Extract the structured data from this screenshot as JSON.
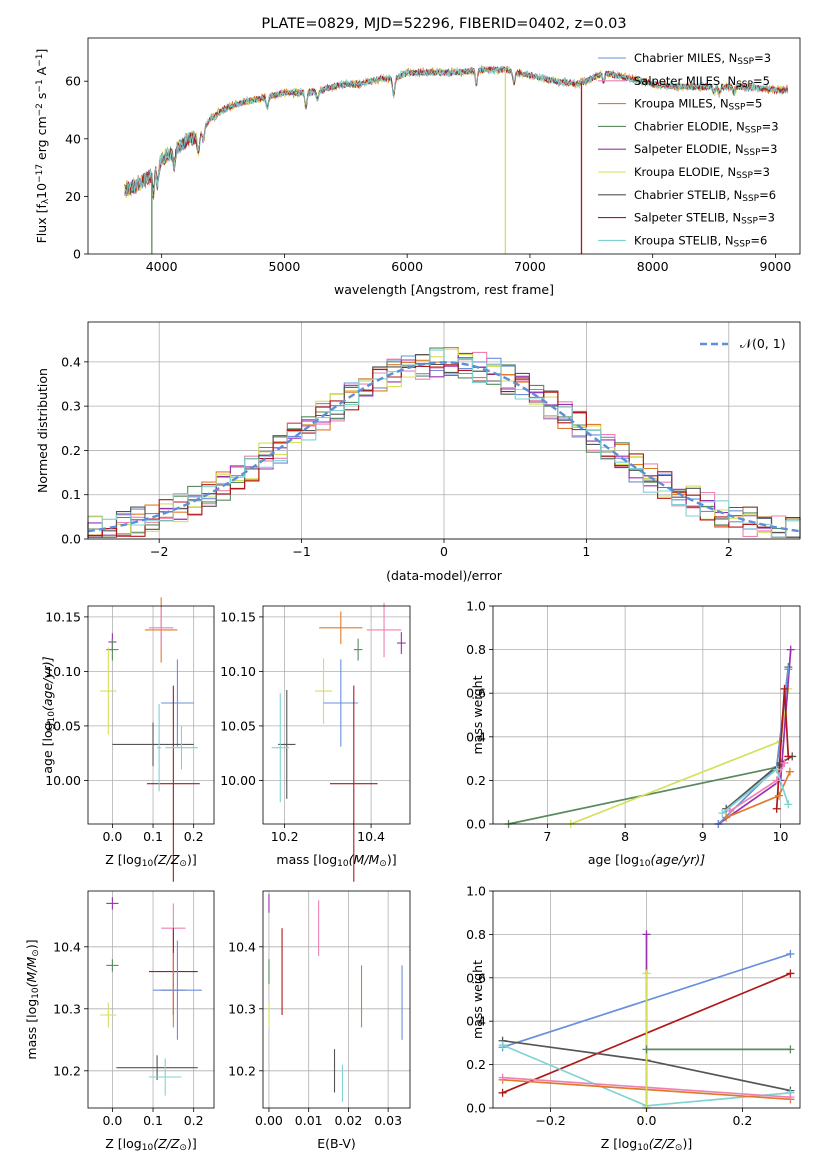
{
  "chart_data": [
    {
      "type": "line",
      "title": "PLATE=0829, MJD=52296, FIBERID=0402, z=0.03",
      "xlabel": "wavelength [Angstrom, rest frame]",
      "ylabel_parts": [
        "Flux [f",
        "λ",
        "10",
        "−17",
        " erg cm",
        "−2",
        " s",
        "−1",
        " A",
        "−1",
        "]"
      ],
      "xlim": [
        3400,
        9200
      ],
      "ylim": [
        0,
        75
      ],
      "xticks": [
        4000,
        5000,
        6000,
        7000,
        8000,
        9000
      ],
      "yticks": [
        0,
        20,
        40,
        60
      ],
      "grid": false,
      "legend_position": "right",
      "series": [
        {
          "name": "Chabrier MILES, N",
          "sub": "SSP",
          "suffix": "=3",
          "color": "#6a8fde"
        },
        {
          "name": "Salpeter MILES, N",
          "sub": "SSP",
          "suffix": "=5",
          "color": "#ee82b4"
        },
        {
          "name": "Kroupa MILES, N",
          "sub": "SSP",
          "suffix": "=5",
          "color": "#e07b2a"
        },
        {
          "name": "Chabrier ELODIE, N",
          "sub": "SSP",
          "suffix": "=3",
          "color": "#5a8a5e"
        },
        {
          "name": "Salpeter ELODIE, N",
          "sub": "SSP",
          "suffix": "=3",
          "color": "#9a30b0"
        },
        {
          "name": "Kroupa ELODIE, N",
          "sub": "SSP",
          "suffix": "=3",
          "color": "#d4e05a"
        },
        {
          "name": "Chabrier STELIB, N",
          "sub": "SSP",
          "suffix": "=6",
          "color": "#555555"
        },
        {
          "name": "Salpeter STELIB, N",
          "sub": "SSP",
          "suffix": "=3",
          "color": "#b01818"
        },
        {
          "name": "Kroupa STELIB, N",
          "sub": "SSP",
          "suffix": "=6",
          "color": "#7fd3d3"
        }
      ],
      "continuum": [
        [
          3700,
          22
        ],
        [
          3800,
          24
        ],
        [
          3900,
          27
        ],
        [
          4000,
          33
        ],
        [
          4100,
          36
        ],
        [
          4200,
          39
        ],
        [
          4300,
          41
        ],
        [
          4400,
          47
        ],
        [
          4500,
          50
        ],
        [
          4600,
          52
        ],
        [
          4700,
          53
        ],
        [
          4800,
          54
        ],
        [
          4900,
          55
        ],
        [
          5000,
          56
        ],
        [
          5100,
          56
        ],
        [
          5200,
          56
        ],
        [
          5300,
          57
        ],
        [
          5400,
          58
        ],
        [
          5500,
          59
        ],
        [
          5600,
          59
        ],
        [
          5700,
          60
        ],
        [
          5800,
          61
        ],
        [
          5900,
          61
        ],
        [
          6000,
          63
        ],
        [
          6200,
          63
        ],
        [
          6400,
          63
        ],
        [
          6600,
          64
        ],
        [
          6800,
          64
        ],
        [
          7000,
          62
        ],
        [
          7200,
          60
        ],
        [
          7400,
          59
        ],
        [
          7600,
          63
        ],
        [
          7800,
          61
        ],
        [
          8000,
          59
        ],
        [
          8200,
          58
        ],
        [
          8400,
          58
        ],
        [
          8600,
          58
        ],
        [
          8800,
          58
        ],
        [
          9000,
          57
        ],
        [
          9100,
          57
        ]
      ],
      "drops": [
        {
          "x": 3920,
          "color": "#5a8a5e"
        },
        {
          "x": 6800,
          "color": "#d4e05a"
        },
        {
          "x": 7420,
          "color": "#b01818"
        }
      ]
    },
    {
      "type": "histogram",
      "xlabel": "(data-model)/error",
      "ylabel": "Normed distribution",
      "xlim": [
        -2.5,
        2.5
      ],
      "ylim": [
        0,
        0.49
      ],
      "xticks": [
        -2,
        -1,
        0,
        1,
        2
      ],
      "yticks": [
        0.0,
        0.1,
        0.2,
        0.3,
        0.4
      ],
      "grid": true,
      "legend_position": "top-right",
      "legend": [
        "𝒩(0, 1)"
      ],
      "reference_curve": {
        "name": "𝒩(0, 1)",
        "mean": 0,
        "sigma": 1,
        "color": "#5b8fd9"
      }
    },
    {
      "type": "scatter",
      "xlabel_parts": [
        "Z [log",
        "10",
        "(Z/Z",
        "⊙",
        ")]"
      ],
      "ylabel_parts": [
        "age  [log",
        "10",
        "(age/yr)]"
      ],
      "xlim": [
        -0.06,
        0.25
      ],
      "ylim": [
        9.96,
        10.16
      ],
      "xticks": [
        0.0,
        0.1,
        0.2
      ],
      "yticks": [
        10.0,
        10.05,
        10.1,
        10.15
      ],
      "grid": true,
      "points": [
        {
          "x": 0.12,
          "y": 10.138,
          "xerr": 0.04,
          "yerr": 0.03,
          "color": "#e07b2a"
        },
        {
          "x": 0.12,
          "y": 10.14,
          "xerr": 0.03,
          "yerr": 0.02,
          "color": "#ee82b4"
        },
        {
          "x": 0.0,
          "y": 10.127,
          "xerr": 0.01,
          "yerr": 0.008,
          "color": "#9a30b0"
        },
        {
          "x": 0.0,
          "y": 10.12,
          "xerr": 0.015,
          "yerr": 0.01,
          "color": "#5a8a5e"
        },
        {
          "x": -0.01,
          "y": 10.082,
          "xerr": 0.02,
          "yerr": 0.04,
          "color": "#d4e05a"
        },
        {
          "x": 0.16,
          "y": 10.071,
          "xerr": 0.04,
          "yerr": 0.04,
          "color": "#6a8fde"
        },
        {
          "x": 0.1,
          "y": 10.033,
          "xerr": 0.1,
          "yerr": 0.02,
          "color": "#555555"
        },
        {
          "x": 0.15,
          "y": 9.997,
          "xerr": 0.065,
          "yerr": 0.09,
          "color": "#b01818"
        },
        {
          "x": 0.17,
          "y": 10.03,
          "xerr": 0.04,
          "yerr": 0.02,
          "color": "#7fd3d3"
        },
        {
          "x": 0.115,
          "y": 10.03,
          "xerr": 0.005,
          "yerr": 0.04,
          "color": "#7fd3d3"
        }
      ]
    },
    {
      "type": "scatter",
      "xlabel_parts": [
        "mass [log",
        "10",
        "(M/M",
        "⊙",
        ")]"
      ],
      "ylabel_parts": [],
      "xlim": [
        10.15,
        10.49
      ],
      "ylim": [
        9.96,
        10.16
      ],
      "xticks": [
        10.2,
        10.4
      ],
      "yticks": [
        10.0,
        10.05,
        10.1,
        10.15
      ],
      "grid": true,
      "points": [
        {
          "x": 10.33,
          "y": 10.14,
          "xerr": 0.05,
          "yerr": 0.015,
          "color": "#e07b2a"
        },
        {
          "x": 10.43,
          "y": 10.138,
          "xerr": 0.04,
          "yerr": 0.025,
          "color": "#ee82b4"
        },
        {
          "x": 10.47,
          "y": 10.126,
          "xerr": 0.01,
          "yerr": 0.01,
          "color": "#9a30b0"
        },
        {
          "x": 10.37,
          "y": 10.12,
          "xerr": 0.01,
          "yerr": 0.01,
          "color": "#5a8a5e"
        },
        {
          "x": 10.29,
          "y": 10.082,
          "xerr": 0.02,
          "yerr": 0.03,
          "color": "#d4e05a"
        },
        {
          "x": 10.33,
          "y": 10.071,
          "xerr": 0.04,
          "yerr": 0.04,
          "color": "#6a8fde"
        },
        {
          "x": 10.205,
          "y": 10.033,
          "xerr": 0.02,
          "yerr": 0.05,
          "color": "#555555"
        },
        {
          "x": 10.36,
          "y": 9.997,
          "xerr": 0.055,
          "yerr": 0.09,
          "color": "#b01818"
        },
        {
          "x": 10.19,
          "y": 10.03,
          "xerr": 0.02,
          "yerr": 0.05,
          "color": "#7fd3d3"
        }
      ]
    },
    {
      "type": "line",
      "xlabel_parts": [
        "age  [log",
        "10",
        "(age/yr)]"
      ],
      "ylabel": "mass weight",
      "xlim": [
        6.3,
        10.25
      ],
      "ylim": [
        0,
        1
      ],
      "xticks": [
        7,
        8,
        9,
        10
      ],
      "yticks": [
        0.0,
        0.2,
        0.4,
        0.6,
        0.8,
        1.0
      ],
      "grid": true,
      "series": [
        {
          "color": "#5a8a5e",
          "points": [
            [
              6.5,
              0.0
            ],
            [
              9.95,
              0.26
            ],
            [
              10.1,
              0.72
            ]
          ]
        },
        {
          "color": "#d4e05a",
          "points": [
            [
              7.3,
              0.0
            ],
            [
              10.0,
              0.38
            ],
            [
              10.1,
              0.62
            ]
          ]
        },
        {
          "color": "#9a30b0",
          "points": [
            [
              9.2,
              0.0
            ],
            [
              10.0,
              0.2
            ],
            [
              10.13,
              0.8
            ]
          ]
        },
        {
          "color": "#6a8fde",
          "points": [
            [
              9.2,
              0.0
            ],
            [
              9.95,
              0.26
            ],
            [
              10.1,
              0.71
            ]
          ]
        },
        {
          "color": "#555555",
          "points": [
            [
              9.3,
              0.07
            ],
            [
              10.0,
              0.28
            ],
            [
              10.15,
              0.31
            ]
          ]
        },
        {
          "color": "#b01818",
          "points": [
            [
              9.95,
              0.07
            ],
            [
              10.05,
              0.62
            ],
            [
              10.1,
              0.31
            ]
          ]
        },
        {
          "color": "#e07b2a",
          "points": [
            [
              9.3,
              0.03
            ],
            [
              9.98,
              0.13
            ],
            [
              10.12,
              0.24
            ]
          ]
        },
        {
          "color": "#ee82b4",
          "points": [
            [
              9.35,
              0.06
            ],
            [
              9.95,
              0.2
            ],
            [
              10.05,
              0.28
            ]
          ]
        },
        {
          "color": "#7fd3d3",
          "points": [
            [
              9.25,
              0.05
            ],
            [
              9.95,
              0.25
            ],
            [
              10.1,
              0.09
            ]
          ]
        }
      ]
    },
    {
      "type": "scatter",
      "xlabel_parts": [
        "Z [log",
        "10",
        "(Z/Z",
        "⊙",
        ")]"
      ],
      "ylabel_parts": [
        "mass [log",
        "10",
        "(M/M",
        "⊙",
        ")]"
      ],
      "xlim": [
        -0.06,
        0.25
      ],
      "ylim": [
        10.14,
        10.49
      ],
      "xticks": [
        0.0,
        0.1,
        0.2
      ],
      "yticks": [
        10.2,
        10.3,
        10.4
      ],
      "grid": true,
      "points": [
        {
          "x": 0.0,
          "y": 10.47,
          "xerr": 0.015,
          "yerr": 0.01,
          "color": "#9a30b0"
        },
        {
          "x": 0.15,
          "y": 10.43,
          "xerr": 0.03,
          "yerr": 0.04,
          "color": "#ee82b4"
        },
        {
          "x": 0.0,
          "y": 10.37,
          "xerr": 0.015,
          "yerr": 0.01,
          "color": "#5a8a5e"
        },
        {
          "x": 0.15,
          "y": 10.36,
          "xerr": 0.06,
          "yerr": 0.07,
          "color": "#b01818"
        },
        {
          "x": 0.15,
          "y": 10.33,
          "xerr": 0.03,
          "yerr": 0.06,
          "color": "#e07b2a"
        },
        {
          "x": 0.16,
          "y": 10.33,
          "xerr": 0.06,
          "yerr": 0.08,
          "color": "#6a8fde"
        },
        {
          "x": -0.01,
          "y": 10.29,
          "xerr": 0.02,
          "yerr": 0.02,
          "color": "#d4e05a"
        },
        {
          "x": 0.11,
          "y": 10.205,
          "xerr": 0.1,
          "yerr": 0.02,
          "color": "#555555"
        },
        {
          "x": 0.13,
          "y": 10.19,
          "xerr": 0.04,
          "yerr": 0.03,
          "color": "#7fd3d3"
        }
      ]
    },
    {
      "type": "scatter",
      "xlabel": "E(B-V)",
      "ylabel_parts": [],
      "xlim": [
        -0.0015,
        0.0355
      ],
      "ylim": [
        10.14,
        10.49
      ],
      "xticks": [
        0.0,
        0.01,
        0.02,
        0.03
      ],
      "xticklabels": [
        "0.00",
        "0.01",
        "0.02",
        "0.03"
      ],
      "yticks": [
        10.2,
        10.3,
        10.4
      ],
      "grid": true,
      "points": [
        {
          "x": 0.0,
          "y": 10.47,
          "xerr": 0,
          "yerr": 0.015,
          "color": "#9a30b0"
        },
        {
          "x": 0.0,
          "y": 10.36,
          "xerr": 0,
          "yerr": 0.02,
          "color": "#5a8a5e"
        },
        {
          "x": 0.0,
          "y": 10.29,
          "xerr": 0,
          "yerr": 0.02,
          "color": "#d4e05a"
        },
        {
          "x": 0.0033,
          "y": 10.36,
          "xerr": 0,
          "yerr": 0.07,
          "color": "#b01818"
        },
        {
          "x": 0.0125,
          "y": 10.43,
          "xerr": 0,
          "yerr": 0.045,
          "color": "#ee82b4"
        },
        {
          "x": 0.0233,
          "y": 10.32,
          "xerr": 0,
          "yerr": 0.05,
          "color": "#e07b2a"
        },
        {
          "x": 0.0335,
          "y": 10.31,
          "xerr": 0,
          "yerr": 0.06,
          "color": "#6a8fde"
        },
        {
          "x": 0.0165,
          "y": 10.2,
          "xerr": 0,
          "yerr": 0.035,
          "color": "#555555"
        },
        {
          "x": 0.0185,
          "y": 10.18,
          "xerr": 0,
          "yerr": 0.03,
          "color": "#7fd3d3"
        }
      ]
    },
    {
      "type": "line",
      "xlabel_parts": [
        "Z [log",
        "10",
        "(Z/Z",
        "⊙",
        ")]"
      ],
      "ylabel": "mass weight",
      "xlim": [
        -0.32,
        0.32
      ],
      "ylim": [
        0,
        1
      ],
      "xticks": [
        -0.2,
        0.0,
        0.2
      ],
      "xticklabels": [
        "−0.2",
        "0.0",
        "0.2"
      ],
      "yticks": [
        0.0,
        0.2,
        0.4,
        0.6,
        0.8,
        1.0
      ],
      "grid": true,
      "series": [
        {
          "color": "#6a8fde",
          "points": [
            [
              -0.3,
              0.28
            ],
            [
              0.3,
              0.71
            ]
          ]
        },
        {
          "color": "#b01818",
          "points": [
            [
              -0.3,
              0.07
            ],
            [
              0.3,
              0.62
            ]
          ]
        },
        {
          "color": "#555555",
          "points": [
            [
              -0.3,
              0.31
            ],
            [
              0.0,
              0.22
            ],
            [
              0.3,
              0.08
            ]
          ]
        },
        {
          "color": "#7fd3d3",
          "points": [
            [
              -0.3,
              0.29
            ],
            [
              0.0,
              0.01
            ],
            [
              0.3,
              0.07
            ]
          ]
        },
        {
          "color": "#e07b2a",
          "points": [
            [
              -0.3,
              0.13
            ],
            [
              0.3,
              0.04
            ]
          ]
        },
        {
          "color": "#ee82b4",
          "points": [
            [
              -0.3,
              0.14
            ],
            [
              0.3,
              0.05
            ]
          ]
        },
        {
          "color": "#9a30b0",
          "points": [
            [
              0.0,
              0.8
            ],
            [
              0.0,
              0.0
            ]
          ]
        },
        {
          "color": "#d4e05a",
          "points": [
            [
              0.0,
              0.62
            ],
            [
              0.0,
              0.0
            ]
          ]
        },
        {
          "color": "#5a8a5e",
          "points": [
            [
              0.0,
              0.27
            ],
            [
              0.3,
              0.27
            ]
          ]
        }
      ]
    }
  ]
}
